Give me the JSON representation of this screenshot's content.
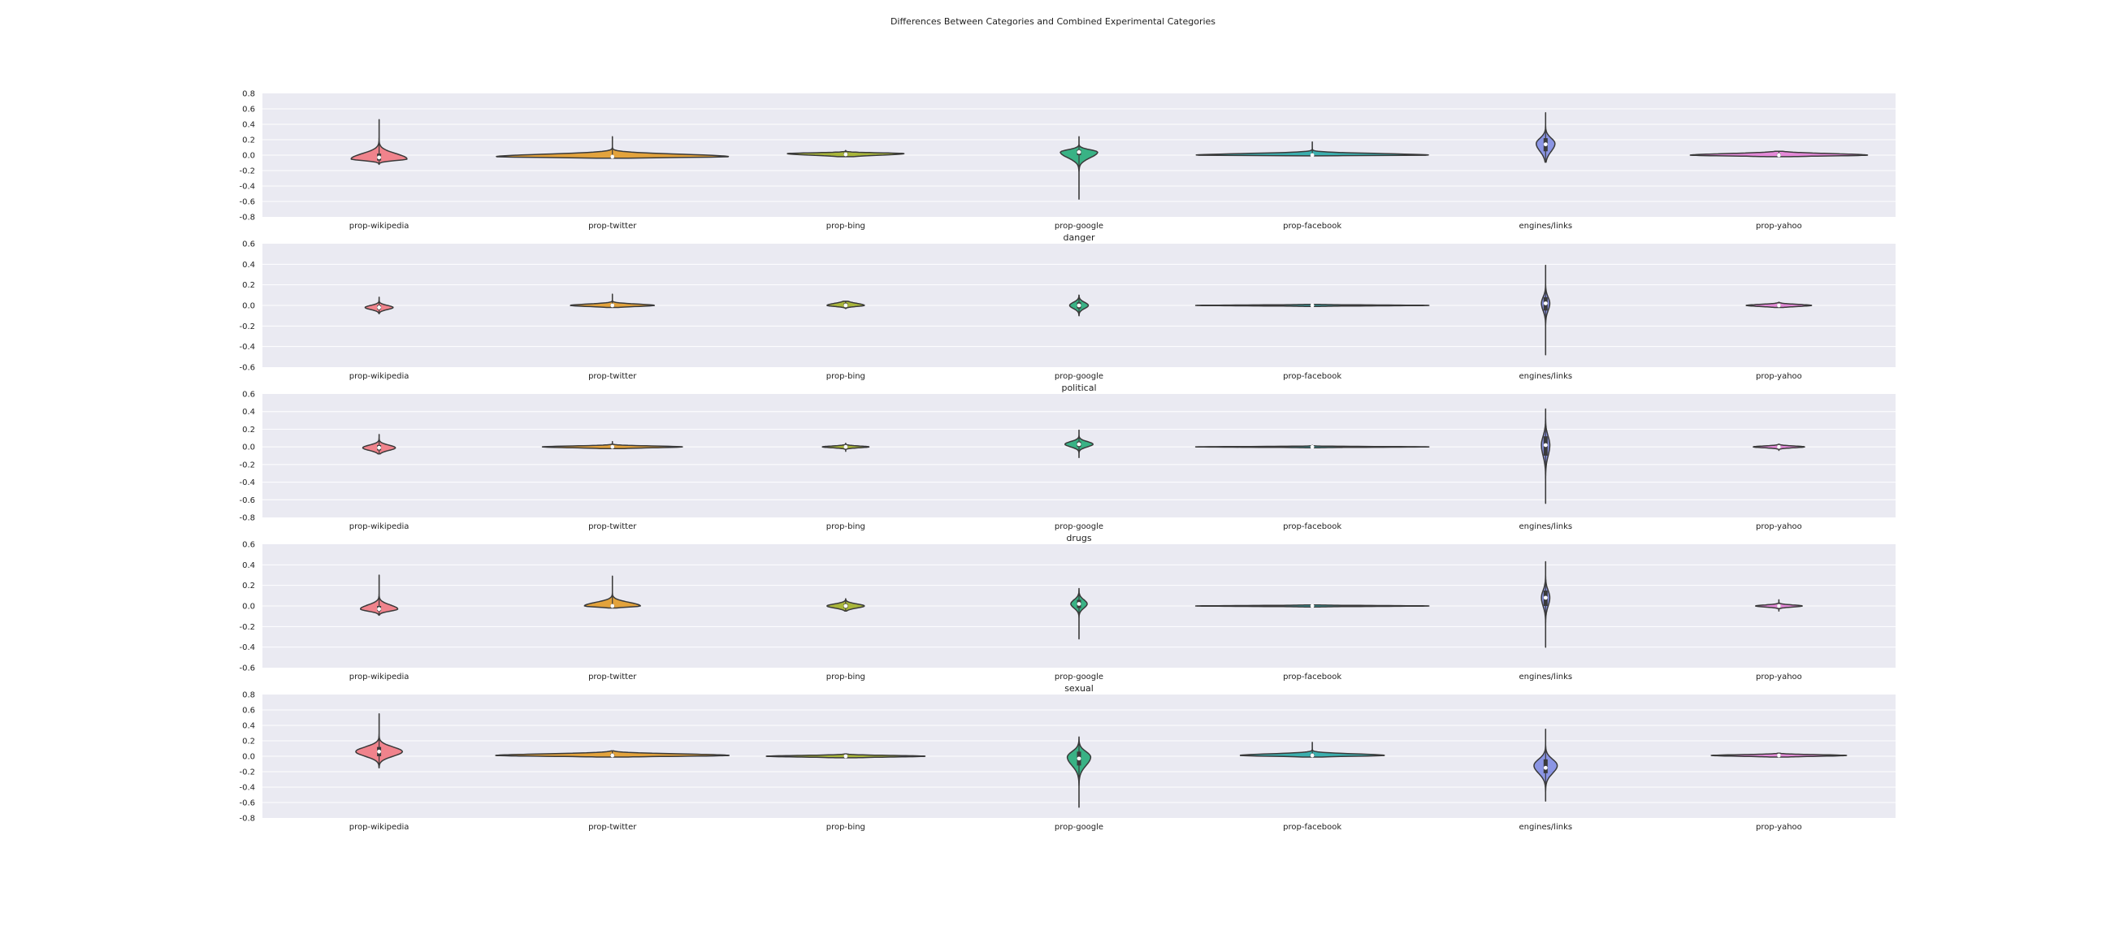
{
  "title": "Differences Between Categories and Combined Experimental Categories",
  "palette": {
    "prop-wikipedia": "#f0838c",
    "prop-twitter": "#e3a33c",
    "prop-bing": "#a9b63a",
    "prop-google": "#39b285",
    "prop-facebook": "#3bafae",
    "engines/links": "#8b95e4",
    "prop-yahoo": "#e58ad8",
    "panel_background": "#eaeaf2",
    "gridline": "#ffffff",
    "outline": "#3a3a3a"
  },
  "chart_data": [
    {
      "type": "violin",
      "title": "",
      "categories": [
        "prop-wikipedia",
        "prop-twitter",
        "prop-bing",
        "prop-google",
        "prop-facebook",
        "engines/links",
        "prop-yahoo"
      ],
      "ylim": [
        -0.8,
        0.8
      ],
      "yticks": [
        "0.8",
        "0.6",
        "0.4",
        "0.2",
        "0.0",
        "-0.2",
        "-0.4",
        "-0.6",
        "-0.8"
      ],
      "grid": true,
      "violins": [
        {
          "category": "prop-wikipedia",
          "min": -0.12,
          "max": 0.46,
          "median": -0.03,
          "q1": -0.07,
          "q3": 0.02,
          "mode": -0.05,
          "half_width": 0.12
        },
        {
          "category": "prop-twitter",
          "min": -0.04,
          "max": 0.24,
          "median": -0.02,
          "q1": -0.03,
          "q3": -0.01,
          "mode": -0.02,
          "half_width": 0.5
        },
        {
          "category": "prop-bing",
          "min": -0.02,
          "max": 0.06,
          "median": 0.01,
          "q1": 0.0,
          "q3": 0.03,
          "mode": 0.02,
          "half_width": 0.25
        },
        {
          "category": "prop-google",
          "min": -0.57,
          "max": 0.24,
          "median": 0.04,
          "q1": 0.0,
          "q3": 0.07,
          "mode": 0.04,
          "half_width": 0.08
        },
        {
          "category": "prop-facebook",
          "min": -0.01,
          "max": 0.17,
          "median": 0.0,
          "q1": 0.0,
          "q3": 0.01,
          "mode": 0.0,
          "half_width": 0.5
        },
        {
          "category": "engines/links",
          "min": -0.09,
          "max": 0.55,
          "median": 0.14,
          "q1": 0.05,
          "q3": 0.22,
          "mode": 0.15,
          "half_width": 0.04
        },
        {
          "category": "prop-yahoo",
          "min": -0.02,
          "max": 0.05,
          "median": 0.0,
          "q1": -0.01,
          "q3": 0.02,
          "mode": 0.0,
          "half_width": 0.38
        }
      ]
    },
    {
      "type": "violin",
      "title": "danger",
      "categories": [
        "prop-wikipedia",
        "prop-twitter",
        "prop-bing",
        "prop-google",
        "prop-facebook",
        "engines/links",
        "prop-yahoo"
      ],
      "ylim": [
        -0.6,
        0.6
      ],
      "yticks": [
        "0.6",
        "0.4",
        "0.2",
        "0.0",
        "-0.2",
        "-0.4",
        "-0.6"
      ],
      "grid": true,
      "violins": [
        {
          "category": "prop-wikipedia",
          "min": -0.08,
          "max": 0.08,
          "median": -0.02,
          "q1": -0.04,
          "q3": 0.0,
          "mode": -0.02,
          "half_width": 0.06
        },
        {
          "category": "prop-twitter",
          "min": -0.02,
          "max": 0.11,
          "median": 0.0,
          "q1": -0.01,
          "q3": 0.01,
          "mode": 0.0,
          "half_width": 0.18
        },
        {
          "category": "prop-bing",
          "min": -0.03,
          "max": 0.04,
          "median": 0.0,
          "q1": -0.01,
          "q3": 0.02,
          "mode": 0.0,
          "half_width": 0.08
        },
        {
          "category": "prop-google",
          "min": -0.1,
          "max": 0.1,
          "median": 0.0,
          "q1": -0.03,
          "q3": 0.03,
          "mode": 0.0,
          "half_width": 0.04
        },
        {
          "category": "prop-facebook",
          "min": -0.01,
          "max": 0.01,
          "median": 0.0,
          "q1": 0.0,
          "q3": 0.0,
          "mode": 0.0,
          "half_width": 0.5
        },
        {
          "category": "engines/links",
          "min": -0.48,
          "max": 0.39,
          "median": 0.02,
          "q1": -0.05,
          "q3": 0.08,
          "mode": 0.02,
          "half_width": 0.018
        },
        {
          "category": "prop-yahoo",
          "min": -0.02,
          "max": 0.03,
          "median": 0.0,
          "q1": -0.01,
          "q3": 0.01,
          "mode": 0.0,
          "half_width": 0.14
        }
      ]
    },
    {
      "type": "violin",
      "title": "political",
      "categories": [
        "prop-wikipedia",
        "prop-twitter",
        "prop-bing",
        "prop-google",
        "prop-facebook",
        "engines/links",
        "prop-yahoo"
      ],
      "ylim": [
        -0.8,
        0.6
      ],
      "yticks": [
        "0.6",
        "0.4",
        "0.2",
        "0.0",
        "-0.2",
        "-0.4",
        "-0.6",
        "-0.8"
      ],
      "grid": true,
      "violins": [
        {
          "category": "prop-wikipedia",
          "min": -0.08,
          "max": 0.14,
          "median": -0.01,
          "q1": -0.04,
          "q3": 0.02,
          "mode": -0.01,
          "half_width": 0.07
        },
        {
          "category": "prop-twitter",
          "min": -0.02,
          "max": 0.06,
          "median": 0.0,
          "q1": -0.01,
          "q3": 0.01,
          "mode": 0.0,
          "half_width": 0.3
        },
        {
          "category": "prop-bing",
          "min": -0.05,
          "max": 0.04,
          "median": 0.0,
          "q1": -0.01,
          "q3": 0.01,
          "mode": 0.0,
          "half_width": 0.1
        },
        {
          "category": "prop-google",
          "min": -0.12,
          "max": 0.19,
          "median": 0.03,
          "q1": 0.0,
          "q3": 0.06,
          "mode": 0.03,
          "half_width": 0.06
        },
        {
          "category": "prop-facebook",
          "min": -0.01,
          "max": 0.02,
          "median": 0.0,
          "q1": 0.0,
          "q3": 0.0,
          "mode": 0.0,
          "half_width": 0.5
        },
        {
          "category": "engines/links",
          "min": -0.64,
          "max": 0.43,
          "median": 0.02,
          "q1": -0.1,
          "q3": 0.12,
          "mode": 0.02,
          "half_width": 0.018
        },
        {
          "category": "prop-yahoo",
          "min": -0.04,
          "max": 0.03,
          "median": 0.0,
          "q1": -0.01,
          "q3": 0.01,
          "mode": 0.0,
          "half_width": 0.11
        }
      ]
    },
    {
      "type": "violin",
      "title": "drugs",
      "categories": [
        "prop-wikipedia",
        "prop-twitter",
        "prop-bing",
        "prop-google",
        "prop-facebook",
        "engines/links",
        "prop-yahoo"
      ],
      "ylim": [
        -0.6,
        0.6
      ],
      "yticks": [
        "0.6",
        "0.4",
        "0.2",
        "0.0",
        "-0.2",
        "-0.4",
        "-0.6"
      ],
      "grid": true,
      "violins": [
        {
          "category": "prop-wikipedia",
          "min": -0.09,
          "max": 0.3,
          "median": -0.03,
          "q1": -0.05,
          "q3": 0.0,
          "mode": -0.03,
          "half_width": 0.08
        },
        {
          "category": "prop-twitter",
          "min": -0.02,
          "max": 0.29,
          "median": 0.0,
          "q1": -0.01,
          "q3": 0.01,
          "mode": 0.0,
          "half_width": 0.12
        },
        {
          "category": "prop-bing",
          "min": -0.05,
          "max": 0.07,
          "median": 0.0,
          "q1": -0.02,
          "q3": 0.02,
          "mode": 0.0,
          "half_width": 0.08
        },
        {
          "category": "prop-google",
          "min": -0.32,
          "max": 0.17,
          "median": 0.02,
          "q1": -0.02,
          "q3": 0.06,
          "mode": 0.02,
          "half_width": 0.035
        },
        {
          "category": "prop-facebook",
          "min": -0.01,
          "max": 0.01,
          "median": 0.0,
          "q1": 0.0,
          "q3": 0.0,
          "mode": 0.0,
          "half_width": 0.5
        },
        {
          "category": "engines/links",
          "min": -0.4,
          "max": 0.43,
          "median": 0.08,
          "q1": 0.0,
          "q3": 0.15,
          "mode": 0.08,
          "half_width": 0.018
        },
        {
          "category": "prop-yahoo",
          "min": -0.05,
          "max": 0.06,
          "median": 0.0,
          "q1": -0.01,
          "q3": 0.01,
          "mode": 0.0,
          "half_width": 0.1
        }
      ]
    },
    {
      "type": "violin",
      "title": "sexual",
      "categories": [
        "prop-wikipedia",
        "prop-twitter",
        "prop-bing",
        "prop-google",
        "prop-facebook",
        "engines/links",
        "prop-yahoo"
      ],
      "ylim": [
        -0.8,
        0.8
      ],
      "yticks": [
        "0.8",
        "0.6",
        "0.4",
        "0.2",
        "0.0",
        "-0.2",
        "-0.4",
        "-0.6",
        "-0.8"
      ],
      "grid": true,
      "violins": [
        {
          "category": "prop-wikipedia",
          "min": -0.15,
          "max": 0.55,
          "median": 0.06,
          "q1": 0.0,
          "q3": 0.12,
          "mode": 0.06,
          "half_width": 0.1
        },
        {
          "category": "prop-twitter",
          "min": -0.01,
          "max": 0.07,
          "median": 0.01,
          "q1": 0.0,
          "q3": 0.03,
          "mode": 0.01,
          "half_width": 0.5
        },
        {
          "category": "prop-bing",
          "min": -0.02,
          "max": 0.03,
          "median": 0.0,
          "q1": -0.01,
          "q3": 0.01,
          "mode": 0.0,
          "half_width": 0.34
        },
        {
          "category": "prop-google",
          "min": -0.66,
          "max": 0.25,
          "median": -0.03,
          "q1": -0.12,
          "q3": 0.06,
          "mode": -0.01,
          "half_width": 0.05
        },
        {
          "category": "prop-facebook",
          "min": -0.01,
          "max": 0.18,
          "median": 0.01,
          "q1": 0.0,
          "q3": 0.03,
          "mode": 0.01,
          "half_width": 0.31
        },
        {
          "category": "engines/links",
          "min": -0.58,
          "max": 0.35,
          "median": -0.15,
          "q1": -0.22,
          "q3": -0.04,
          "mode": -0.12,
          "half_width": 0.05
        },
        {
          "category": "prop-yahoo",
          "min": -0.01,
          "max": 0.04,
          "median": 0.01,
          "q1": 0.0,
          "q3": 0.02,
          "mode": 0.01,
          "half_width": 0.29
        }
      ]
    }
  ]
}
